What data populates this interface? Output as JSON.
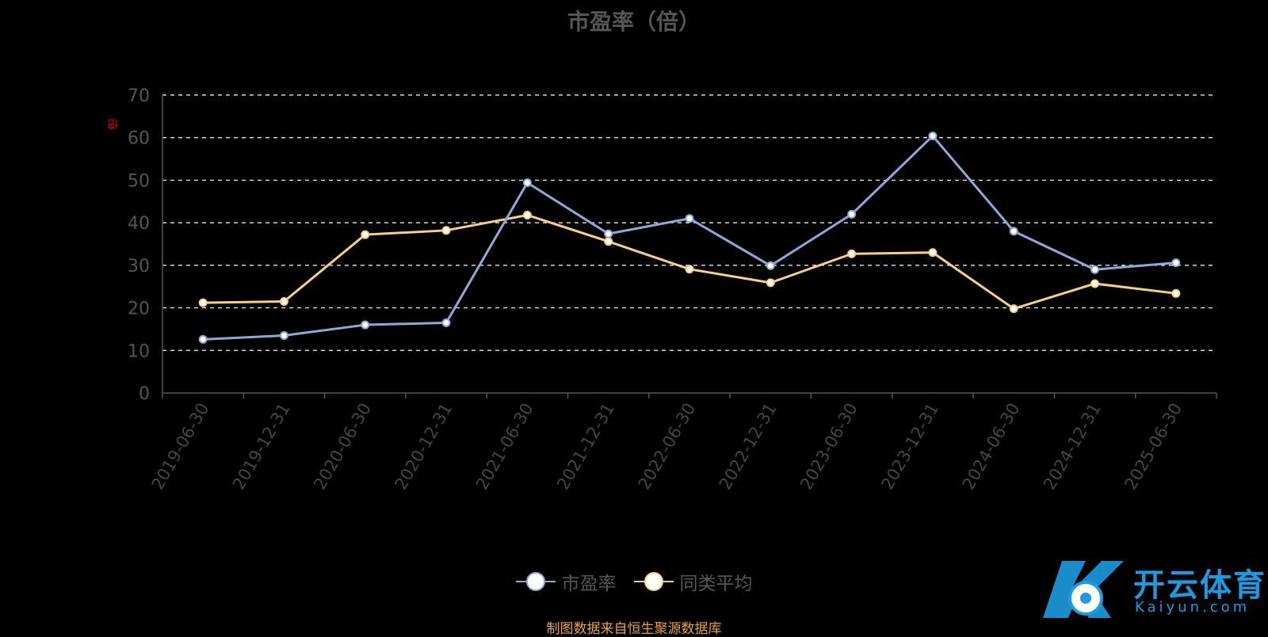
{
  "title": "市盈率（倍）",
  "y_unit": "倍",
  "source_note": "制图数据来自恒生聚源数据库",
  "watermark": {
    "brand": "开云体育",
    "domain": "Kaiyun.com"
  },
  "legend": [
    {
      "name": "市盈率",
      "color": "#8fa9d6"
    },
    {
      "name": "同类平均",
      "color": "#f5d08a"
    }
  ],
  "chart_data": {
    "type": "line",
    "title": "市盈率（倍）",
    "ylabel": "倍",
    "xlabel": "",
    "ylim": [
      0,
      70
    ],
    "yticks": [
      0,
      10,
      20,
      30,
      40,
      50,
      60,
      70
    ],
    "grid": true,
    "legend_position": "bottom",
    "categories": [
      "2019-06-30",
      "2019-12-31",
      "2020-06-30",
      "2020-12-31",
      "2021-06-30",
      "2021-12-31",
      "2022-06-30",
      "2022-12-31",
      "2023-06-30",
      "2023-12-31",
      "2024-06-30",
      "2024-12-31",
      "2025-06-30"
    ],
    "series": [
      {
        "name": "市盈率",
        "color": "#8fa9d6",
        "values": [
          12.6,
          13.5,
          16.0,
          16.5,
          49.4,
          37.4,
          41.0,
          29.9,
          42.0,
          60.4,
          38.0,
          29.0,
          30.6
        ]
      },
      {
        "name": "同类平均",
        "color": "#f5d08a",
        "values": [
          21.2,
          21.5,
          37.2,
          38.2,
          41.8,
          35.6,
          29.1,
          25.9,
          32.7,
          33.0,
          19.8,
          25.7,
          23.4
        ]
      }
    ]
  }
}
